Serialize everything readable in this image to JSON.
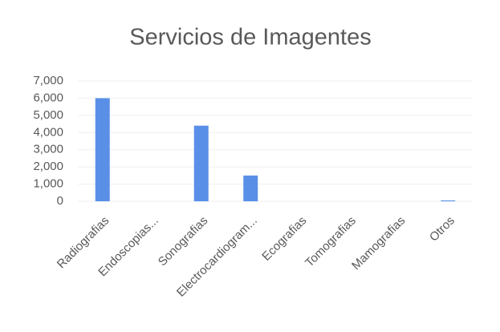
{
  "chart_data": {
    "type": "bar",
    "title": "Servicios de Imagentes",
    "categories": [
      "Radiografias",
      "Endoscopias...",
      "Sonografias",
      "Electrocardiogram...",
      "Ecografias",
      "Tomografias",
      "Mamografias",
      "Otros"
    ],
    "values": [
      6000,
      0,
      4400,
      1500,
      0,
      0,
      0,
      50
    ],
    "color": "#5a8fe8",
    "ylim": [
      0,
      7000
    ],
    "yticks": [
      0,
      {
        "value": 1000,
        "label": "1,000"
      },
      {
        "value": 2000,
        "label": "2,000"
      },
      {
        "value": 3000,
        "label": "3,000"
      },
      {
        "value": 4000,
        "label": "4,000"
      },
      {
        "value": 5000,
        "label": "5,000"
      },
      {
        "value": 6000,
        "label": "6,000"
      },
      {
        "value": 7000,
        "label": "7,000"
      }
    ],
    "grid": true
  }
}
